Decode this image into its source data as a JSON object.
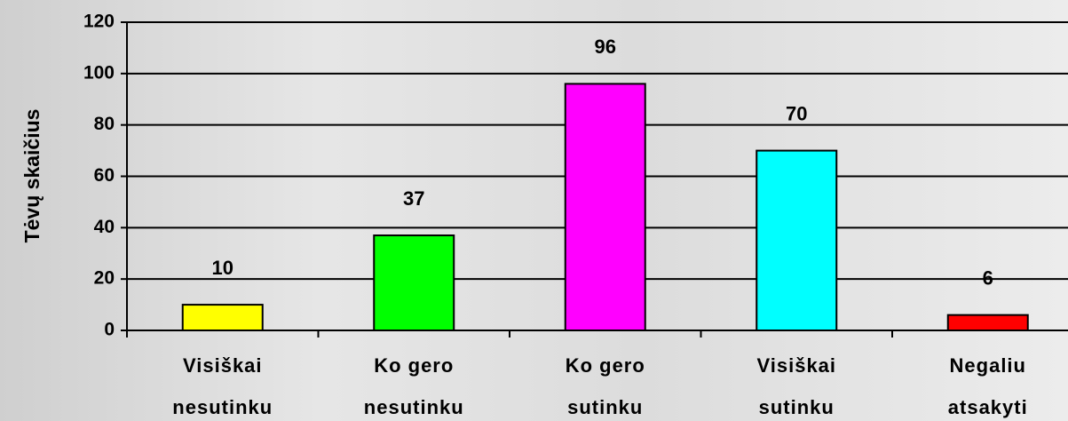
{
  "chart_data": {
    "type": "bar",
    "y_axis_label": "Tėvų skaičius",
    "categories": [
      [
        "Visiškai",
        "nesutinku"
      ],
      [
        "Ko gero",
        "nesutinku"
      ],
      [
        "Ko gero",
        "sutinku"
      ],
      [
        "Visiškai",
        "sutinku"
      ],
      [
        "Negaliu",
        "atsakyti"
      ]
    ],
    "values": [
      10,
      37,
      96,
      70,
      6
    ],
    "colors": [
      "#ffff00",
      "#00ff00",
      "#ff00ff",
      "#00ffff",
      "#ff0000"
    ],
    "ylim": [
      0,
      120
    ],
    "yticks": [
      0,
      20,
      40,
      60,
      80,
      100,
      120
    ],
    "grid": true
  }
}
